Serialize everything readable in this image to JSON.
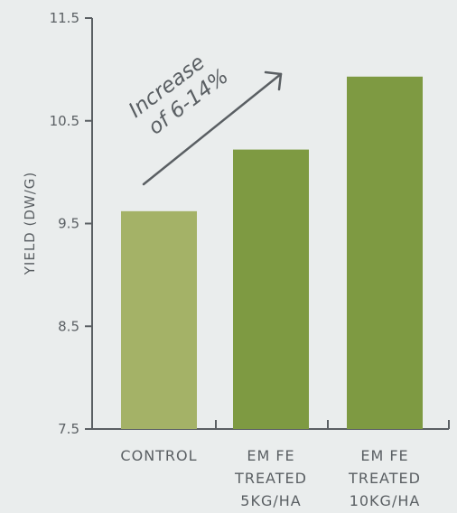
{
  "chart_data": {
    "type": "bar",
    "categories": [
      [
        "CONTROL"
      ],
      [
        "EM FE",
        "TREATED",
        "5KG/HA"
      ],
      [
        "EM FE",
        "TREATED",
        "10KG/HA"
      ]
    ],
    "values": [
      9.62,
      10.22,
      10.93
    ],
    "bar_colors": [
      "#a4b267",
      "#7e9a42",
      "#7e9a42"
    ],
    "ylabel": "YIELD (DW/G)",
    "xlabel": "",
    "title": "",
    "ylim": [
      7.5,
      11.5
    ],
    "yticks": [
      "7.5",
      "8.5",
      "9.5",
      "10.5",
      "11.5"
    ],
    "grid": false,
    "annotation": {
      "lines": [
        "Increase",
        "of 6-14%"
      ]
    }
  },
  "colors": {
    "background": "#eaeded",
    "axis": "#5a5f63",
    "text": "#5a5f63"
  }
}
